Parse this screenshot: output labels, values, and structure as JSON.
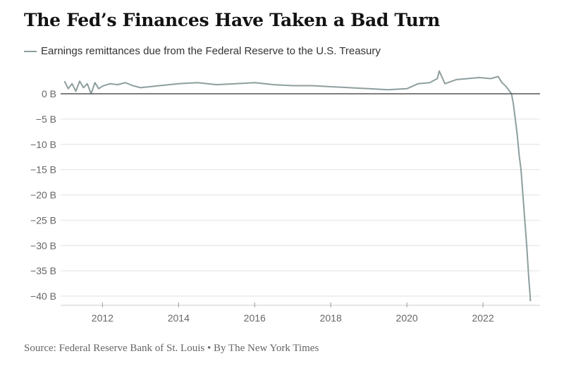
{
  "chart_data": {
    "type": "line",
    "title": "The Fed’s Finances Have Taken a Bad Turn",
    "legend_label": "Earnings remittances due from the Federal Reserve to the U.S. Treasury",
    "legend_placement": "top-left",
    "xlabel": "",
    "ylabel": "",
    "x_ticks": [
      "2012",
      "2014",
      "2016",
      "2018",
      "2020",
      "2022"
    ],
    "y_ticks": [
      "0 B",
      "−5 B",
      "−10 B",
      "−15 B",
      "−20 B",
      "−25 B",
      "−30 B",
      "−35 B",
      "−40 B"
    ],
    "y_tick_values": [
      0,
      -5,
      -10,
      -15,
      -20,
      -25,
      -30,
      -35,
      -40
    ],
    "x_tick_values": [
      2012,
      2014,
      2016,
      2018,
      2020,
      2022
    ],
    "xlim": [
      2010.9,
      2023.5
    ],
    "ylim": [
      -41,
      2
    ],
    "grid": "horizontal",
    "line_color": "#8e9e9e",
    "series": [
      {
        "x": [
          2011.0,
          2011.1,
          2011.2,
          2011.3,
          2011.4,
          2011.5,
          2011.6,
          2011.7,
          2011.8,
          2011.9,
          2012.0,
          2012.2,
          2012.4,
          2012.6,
          2012.8,
          2013.0,
          2013.5,
          2014.0,
          2014.5,
          2015.0,
          2015.5,
          2016.0,
          2016.5,
          2017.0,
          2017.5,
          2018.0,
          2018.5,
          2019.0,
          2019.5,
          2020.0,
          2020.3,
          2020.6,
          2020.8,
          2020.85,
          2021.0,
          2021.3,
          2021.6,
          2021.9,
          2022.2,
          2022.4,
          2022.5,
          2022.6,
          2022.7,
          2022.75,
          2022.8,
          2022.85,
          2022.9,
          2022.95,
          2023.0,
          2023.05,
          2023.1,
          2023.15,
          2023.2,
          2023.25
        ],
        "values": [
          2.5,
          1.0,
          2.0,
          0.5,
          2.5,
          1.2,
          2.0,
          0.0,
          2.2,
          1.0,
          1.5,
          2.0,
          1.8,
          2.2,
          1.6,
          1.2,
          1.6,
          2.0,
          2.2,
          1.8,
          2.0,
          2.2,
          1.8,
          1.6,
          1.6,
          1.4,
          1.2,
          1.0,
          0.8,
          1.0,
          2.0,
          2.2,
          3.0,
          4.5,
          2.0,
          2.8,
          3.0,
          3.2,
          3.0,
          3.4,
          2.2,
          1.5,
          0.5,
          0.0,
          -2.0,
          -5.0,
          -8.0,
          -12.0,
          -15.0,
          -20.0,
          -25.0,
          -30.0,
          -36.0,
          -41.0
        ]
      }
    ],
    "source": "Source: Federal Reserve Bank of St. Louis • By The New York Times"
  }
}
